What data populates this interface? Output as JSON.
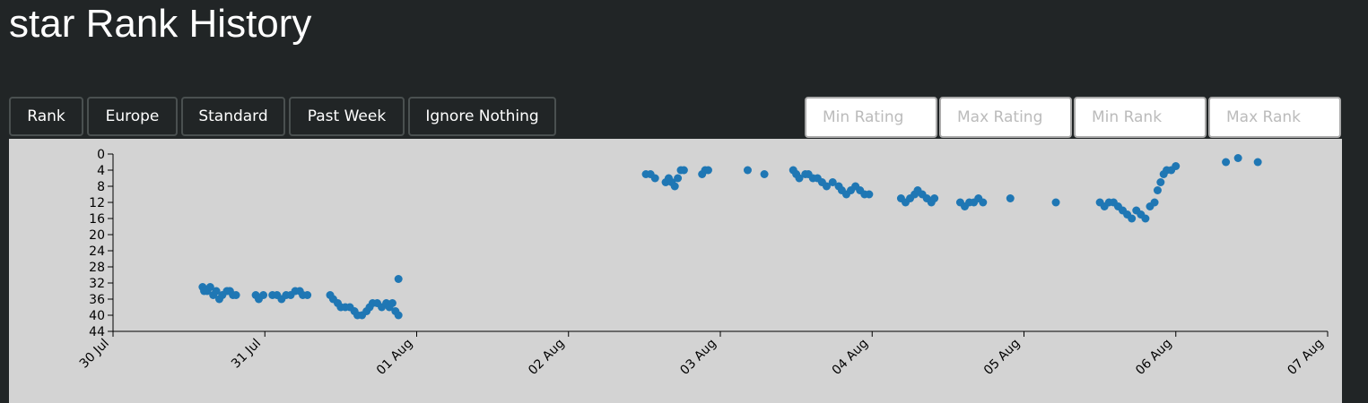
{
  "header": {
    "title": "star Rank History"
  },
  "buttons": [
    "Rank",
    "Europe",
    "Standard",
    "Past Week",
    "Ignore Nothing"
  ],
  "inputs": [
    "Min Rating",
    "Max Rating",
    "Min Rank",
    "Max Rank"
  ],
  "chart_data": {
    "type": "scatter",
    "color": "#1f77b4",
    "xlim": [
      0,
      8
    ],
    "xticks": [
      {
        "value": 0,
        "label": "30 Jul"
      },
      {
        "value": 1,
        "label": "31 Jul"
      },
      {
        "value": 2,
        "label": "01 Aug"
      },
      {
        "value": 3,
        "label": "02 Aug"
      },
      {
        "value": 4,
        "label": "03 Aug"
      },
      {
        "value": 5,
        "label": "04 Aug"
      },
      {
        "value": 6,
        "label": "05 Aug"
      },
      {
        "value": 7,
        "label": "06 Aug"
      },
      {
        "value": 8,
        "label": "07 Aug"
      }
    ],
    "ylim": [
      44,
      0
    ],
    "yticks": [
      0,
      4,
      8,
      12,
      16,
      20,
      24,
      28,
      32,
      36,
      40,
      44
    ],
    "x": [
      0.59,
      0.6,
      0.62,
      0.64,
      0.66,
      0.68,
      0.7,
      0.72,
      0.75,
      0.77,
      0.79,
      0.81,
      0.94,
      0.96,
      0.99,
      1.05,
      1.08,
      1.11,
      1.14,
      1.17,
      1.2,
      1.23,
      1.25,
      1.28,
      1.43,
      1.45,
      1.48,
      1.5,
      1.53,
      1.56,
      1.59,
      1.61,
      1.64,
      1.67,
      1.69,
      1.71,
      1.74,
      1.77,
      1.8,
      1.82,
      1.84,
      1.86,
      1.88,
      1.88,
      3.51,
      3.54,
      3.57,
      3.64,
      3.66,
      3.68,
      3.7,
      3.72,
      3.74,
      3.76,
      3.88,
      3.9,
      3.92,
      4.18,
      4.29,
      4.48,
      4.5,
      4.52,
      4.56,
      4.58,
      4.61,
      4.64,
      4.67,
      4.7,
      4.74,
      4.78,
      4.8,
      4.83,
      4.86,
      4.89,
      4.92,
      4.95,
      4.98,
      5.19,
      5.22,
      5.25,
      5.28,
      5.3,
      5.33,
      5.36,
      5.39,
      5.41,
      5.58,
      5.61,
      5.64,
      5.67,
      5.7,
      5.73,
      5.91,
      6.21,
      6.5,
      6.53,
      6.56,
      6.59,
      6.62,
      6.65,
      6.68,
      6.71,
      6.74,
      6.77,
      6.8,
      6.83,
      6.86,
      6.88,
      6.9,
      6.92,
      6.94,
      6.97,
      7.0,
      7.33,
      7.41,
      7.54
    ],
    "values": [
      33,
      34,
      34,
      33,
      35,
      34,
      36,
      35,
      34,
      34,
      35,
      35,
      35,
      36,
      35,
      35,
      35,
      36,
      35,
      35,
      34,
      34,
      35,
      35,
      35,
      36,
      37,
      38,
      38,
      38,
      39,
      40,
      40,
      39,
      38,
      37,
      37,
      38,
      37,
      38,
      37,
      39,
      40,
      31,
      5,
      5,
      6,
      7,
      6,
      7,
      8,
      6,
      4,
      4,
      5,
      4,
      4,
      4,
      5,
      4,
      5,
      6,
      5,
      5,
      6,
      6,
      7,
      8,
      7,
      8,
      9,
      10,
      9,
      8,
      9,
      10,
      10,
      11,
      12,
      11,
      10,
      9,
      10,
      11,
      12,
      11,
      12,
      13,
      12,
      12,
      11,
      12,
      11,
      12,
      12,
      13,
      12,
      12,
      13,
      14,
      15,
      16,
      14,
      15,
      16,
      13,
      12,
      9,
      7,
      5,
      4,
      4,
      3,
      2,
      1,
      2
    ]
  }
}
